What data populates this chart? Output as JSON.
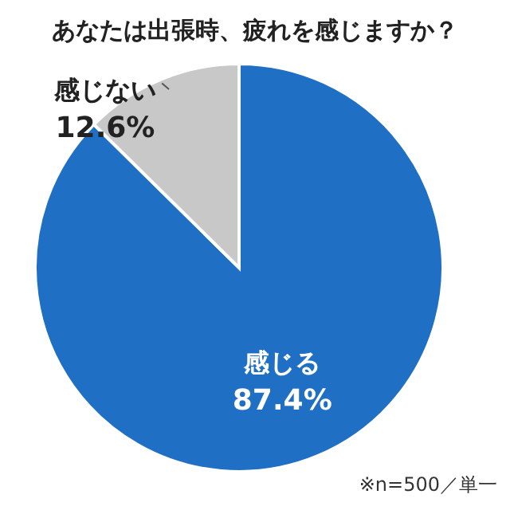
{
  "chart_data": {
    "type": "pie",
    "title": "あなたは出張時、疲れを感じますか？",
    "categories": [
      "感じる",
      "感じない"
    ],
    "values": [
      87.4,
      12.6
    ],
    "colors": [
      "#1f6fc4",
      "#c8c8c8"
    ],
    "value_labels": [
      "87.4%",
      "12.6%"
    ],
    "annotations": [
      "※n=500／単一"
    ]
  }
}
